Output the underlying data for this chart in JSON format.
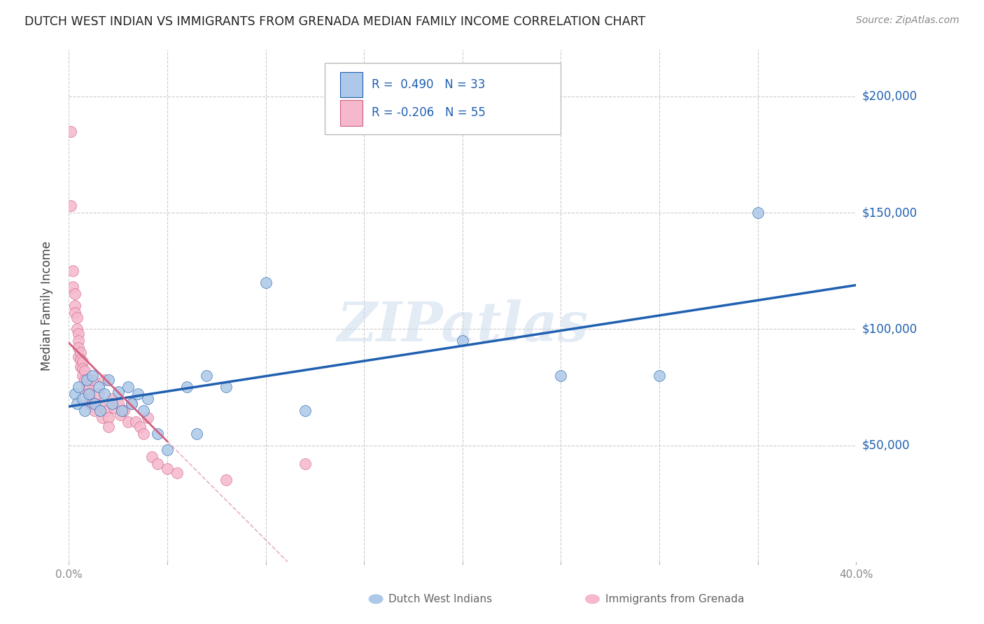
{
  "title": "DUTCH WEST INDIAN VS IMMIGRANTS FROM GRENADA MEDIAN FAMILY INCOME CORRELATION CHART",
  "source": "Source: ZipAtlas.com",
  "ylabel": "Median Family Income",
  "watermark": "ZIPatlas",
  "series1_label": "Dutch West Indians",
  "series2_label": "Immigrants from Grenada",
  "series1_color": "#adc8e8",
  "series2_color": "#f5b8cc",
  "line1_color": "#2060b0",
  "line2_color": "#d06080",
  "background_color": "#ffffff",
  "grid_color": "#cccccc",
  "ytick_labels": [
    "$50,000",
    "$100,000",
    "$150,000",
    "$200,000"
  ],
  "ytick_values": [
    50000,
    100000,
    150000,
    200000
  ],
  "xlim": [
    0.0,
    0.4
  ],
  "ylim": [
    0,
    220000
  ],
  "blue_x": [
    0.003,
    0.004,
    0.005,
    0.007,
    0.008,
    0.009,
    0.01,
    0.012,
    0.013,
    0.015,
    0.016,
    0.018,
    0.02,
    0.022,
    0.025,
    0.027,
    0.03,
    0.032,
    0.035,
    0.038,
    0.04,
    0.045,
    0.05,
    0.06,
    0.065,
    0.07,
    0.08,
    0.1,
    0.12,
    0.2,
    0.25,
    0.3,
    0.35
  ],
  "blue_y": [
    72000,
    68000,
    75000,
    70000,
    65000,
    78000,
    72000,
    80000,
    68000,
    75000,
    65000,
    72000,
    78000,
    68000,
    73000,
    65000,
    75000,
    68000,
    72000,
    65000,
    70000,
    55000,
    48000,
    75000,
    55000,
    80000,
    75000,
    120000,
    65000,
    95000,
    80000,
    80000,
    150000
  ],
  "pink_x": [
    0.001,
    0.001,
    0.002,
    0.002,
    0.003,
    0.003,
    0.003,
    0.004,
    0.004,
    0.005,
    0.005,
    0.005,
    0.005,
    0.006,
    0.006,
    0.006,
    0.007,
    0.007,
    0.007,
    0.008,
    0.008,
    0.009,
    0.009,
    0.01,
    0.01,
    0.01,
    0.011,
    0.012,
    0.012,
    0.013,
    0.014,
    0.015,
    0.016,
    0.017,
    0.018,
    0.019,
    0.02,
    0.02,
    0.022,
    0.023,
    0.025,
    0.026,
    0.028,
    0.03,
    0.032,
    0.034,
    0.036,
    0.038,
    0.04,
    0.042,
    0.045,
    0.05,
    0.055,
    0.08,
    0.12
  ],
  "pink_y": [
    185000,
    153000,
    125000,
    118000,
    115000,
    110000,
    107000,
    105000,
    100000,
    98000,
    95000,
    92000,
    88000,
    90000,
    87000,
    84000,
    86000,
    83000,
    80000,
    82000,
    78000,
    76000,
    74000,
    75000,
    72000,
    68000,
    70000,
    78000,
    67000,
    65000,
    68000,
    72000,
    67000,
    62000,
    78000,
    65000,
    62000,
    58000,
    70000,
    66000,
    68000,
    63000,
    65000,
    60000,
    68000,
    60000,
    58000,
    55000,
    62000,
    45000,
    42000,
    40000,
    38000,
    35000,
    42000
  ],
  "legend_r1_text": "R =  0.490   N = 33",
  "legend_r2_text": "R = -0.206   N = 55",
  "legend_color": "#2060b0"
}
